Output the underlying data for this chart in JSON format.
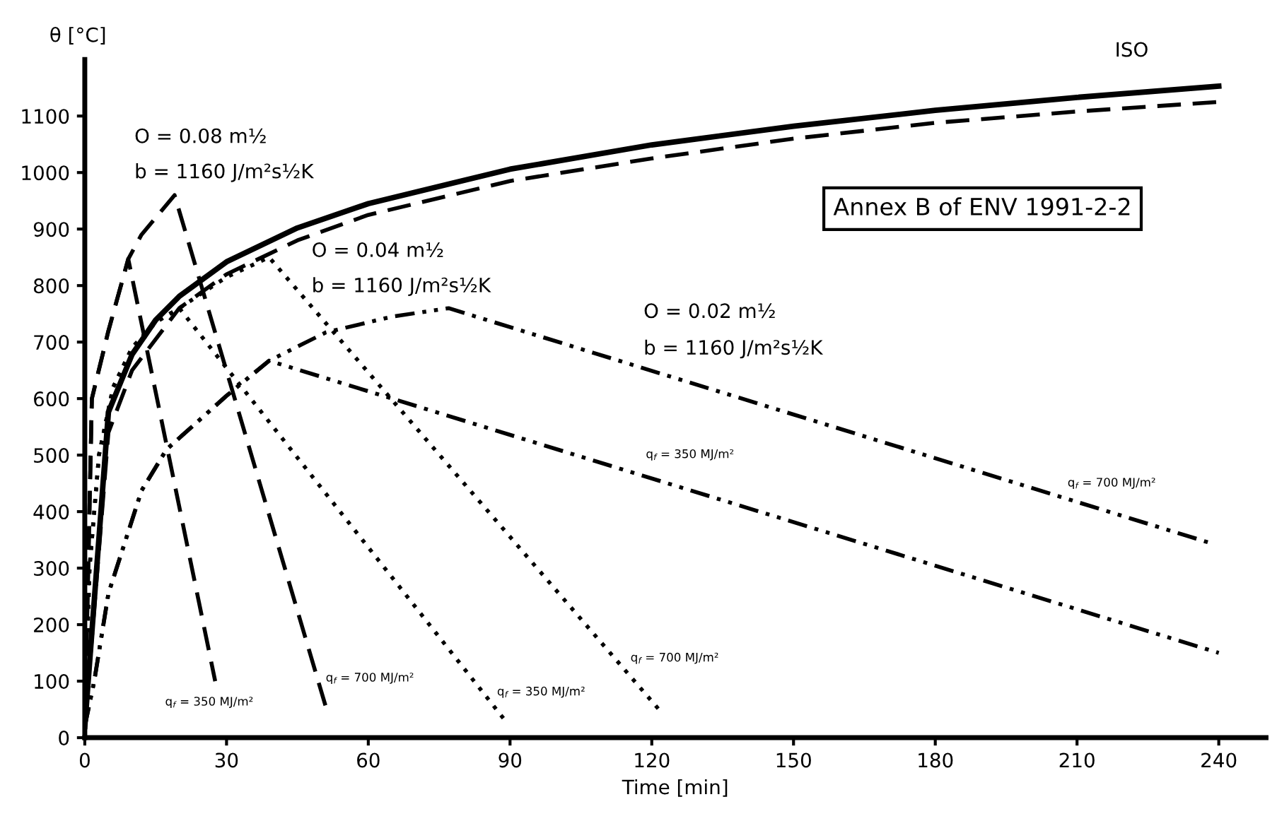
{
  "chart_data": {
    "type": "line",
    "xlabel": "Time [min]",
    "ylabel": "θ [°C]",
    "xlim": [
      0,
      250
    ],
    "ylim": [
      0,
      1200
    ],
    "xticks": [
      0,
      30,
      60,
      90,
      120,
      150,
      180,
      210,
      240
    ],
    "yticks": [
      0,
      100,
      200,
      300,
      400,
      500,
      600,
      700,
      800,
      900,
      1000,
      1100
    ],
    "grid": false,
    "legend": false,
    "marker": "none",
    "series": [
      {
        "name": "ISO",
        "color": "#000000",
        "line_style": "solid",
        "x": [
          0,
          5,
          10,
          15,
          20,
          30,
          45,
          60,
          90,
          120,
          150,
          180,
          210,
          240
        ],
        "values": [
          20,
          576,
          678,
          739,
          781,
          842,
          902,
          945,
          1006,
          1049,
          1082,
          1110,
          1133,
          1153
        ]
      },
      {
        "color": "#000000",
        "line_style": "dashed",
        "x": [
          0,
          5,
          10,
          20,
          30,
          45,
          60,
          90,
          120,
          150,
          180,
          210,
          240
        ],
        "values": [
          20,
          540,
          650,
          760,
          820,
          880,
          925,
          985,
          1025,
          1060,
          1088,
          1108,
          1125
        ]
      },
      {
        "color": "#000000",
        "line_style": "dashed",
        "x": [
          0,
          1.5,
          5,
          9.2,
          27.6
        ],
        "values": [
          20,
          600,
          720,
          847,
          100
        ]
      },
      {
        "color": "#000000",
        "line_style": "dashed",
        "x": [
          0,
          1.5,
          5,
          9.2,
          12,
          15,
          19,
          51
        ],
        "values": [
          20,
          600,
          720,
          847,
          890,
          920,
          960,
          55
        ]
      },
      {
        "color": "#000000",
        "line_style": "dotted",
        "x": [
          0,
          1,
          3,
          6,
          10,
          15,
          20,
          89
        ],
        "values": [
          20,
          300,
          500,
          620,
          690,
          735,
          760,
          30
        ]
      },
      {
        "color": "#000000",
        "line_style": "dotted",
        "x": [
          0,
          1,
          3,
          6,
          10,
          15,
          20,
          30,
          39,
          121.5
        ],
        "values": [
          20,
          300,
          500,
          620,
          690,
          735,
          760,
          815,
          850,
          50
        ]
      },
      {
        "color": "#000000",
        "line_style": "dashdot",
        "x": [
          0,
          2,
          5,
          12,
          17.3,
          30,
          39,
          240
        ],
        "values": [
          20,
          100,
          255,
          437,
          510,
          605,
          667,
          150
        ]
      },
      {
        "color": "#000000",
        "line_style": "dashdot",
        "x": [
          0,
          2,
          5,
          12,
          17.3,
          30,
          39,
          51,
          65,
          77,
          238
        ],
        "values": [
          20,
          100,
          255,
          437,
          510,
          605,
          667,
          717,
          745,
          760,
          345
        ]
      }
    ],
    "annotations": [
      "O = 0.08 m½",
      "b = 1160 J/m²s½K",
      "O = 0.04 m½",
      "b = 1160 J/m²s½K",
      "O = 0.02 m½",
      "b = 1160 J/m²s½K",
      "q$_{f}$ = 350 MJ/m²",
      "q$_{f}$ = 700 MJ/m²",
      "q$_{f}$ = 350 MJ/m²",
      "q$_{f}$ = 700 MJ/m²",
      "q$_{f}$ = 350 MJ/m²",
      "q$_{f}$ = 700 MJ/m²",
      "Annex B of ENV 1991-2-2"
    ]
  }
}
